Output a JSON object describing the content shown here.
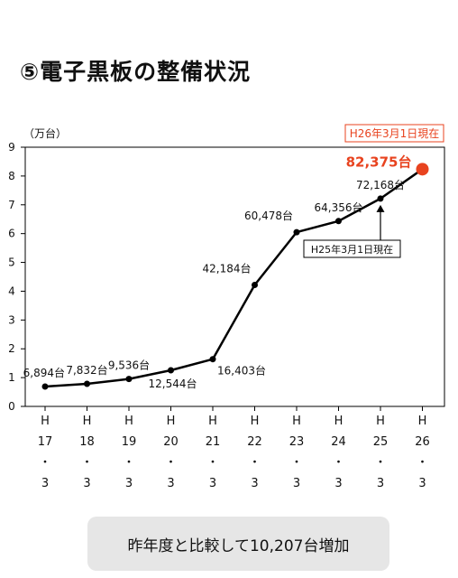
{
  "header": {
    "title": "⑤電子黒板の整備状況"
  },
  "summary": {
    "text": "昨年度と比較して10,207台増加"
  },
  "chart_data": {
    "type": "line",
    "ylabel": "（万台）",
    "ylim": [
      0,
      9
    ],
    "yticks": [
      "0",
      "1",
      "2",
      "3",
      "4",
      "5",
      "6",
      "7",
      "8",
      "9"
    ],
    "grid": false,
    "categories": [
      [
        "H",
        "17",
        "・",
        "3"
      ],
      [
        "H",
        "18",
        "・",
        "3"
      ],
      [
        "H",
        "19",
        "・",
        "3"
      ],
      [
        "H",
        "20",
        "・",
        "3"
      ],
      [
        "H",
        "21",
        "・",
        "3"
      ],
      [
        "H",
        "22",
        "・",
        "3"
      ],
      [
        "H",
        "23",
        "・",
        "3"
      ],
      [
        "H",
        "24",
        "・",
        "3"
      ],
      [
        "H",
        "25",
        "・",
        "3"
      ],
      [
        "H",
        "26",
        "・",
        "3"
      ]
    ],
    "series": [
      {
        "values": [
          0.6894,
          0.7832,
          0.9536,
          1.2544,
          1.6403,
          4.2184,
          6.0478,
          6.4356,
          7.2168,
          8.2375
        ]
      }
    ],
    "data_labels": [
      "6,894台",
      "7,832台",
      "9,536台",
      "12,544台",
      "16,403台",
      "42,184台",
      "60,478台",
      "64,356台",
      "72,168台",
      "82,375台"
    ],
    "label_positions": [
      "left",
      "above",
      "above",
      "below",
      "below",
      "left",
      "left",
      "above",
      "above",
      "above"
    ],
    "highlight_index": 9,
    "highlight_color": "#e8431f",
    "line_color": "#000000",
    "annotations": {
      "current_date": "H26年3月1日現在",
      "prev_date": "H25年3月1日現在",
      "current_color": "#e8431f"
    }
  }
}
